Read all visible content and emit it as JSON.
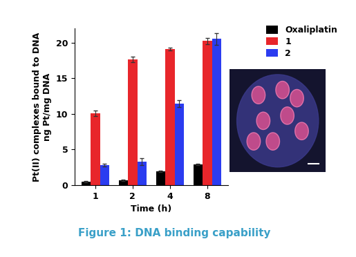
{
  "chart_data": {
    "type": "bar",
    "caption": "Figure 1: DNA binding capability",
    "x_label": "Time (h)",
    "y_label": "Pt(II) complexes bound to DNA\nng Pt/mg DNA",
    "categories": [
      "1",
      "2",
      "4",
      "8"
    ],
    "series": [
      {
        "name": "Oxaliplatin",
        "color": "#000000",
        "values": [
          0.5,
          0.7,
          1.9,
          2.9
        ],
        "errors": [
          0.1,
          0.1,
          0.1,
          0.1
        ]
      },
      {
        "name": "1",
        "color": "#e8262b",
        "values": [
          10.1,
          17.6,
          19.1,
          20.2
        ],
        "errors": [
          0.4,
          0.4,
          0.2,
          0.4
        ]
      },
      {
        "name": "2",
        "color": "#2b3cf0",
        "values": [
          2.8,
          3.3,
          11.4,
          20.5
        ],
        "errors": [
          0.2,
          0.5,
          0.5,
          0.8
        ]
      }
    ],
    "ylim": [
      0,
      22
    ],
    "yticks": [
      0,
      5,
      10,
      15,
      20
    ],
    "legend": "upper right",
    "grid": false
  }
}
